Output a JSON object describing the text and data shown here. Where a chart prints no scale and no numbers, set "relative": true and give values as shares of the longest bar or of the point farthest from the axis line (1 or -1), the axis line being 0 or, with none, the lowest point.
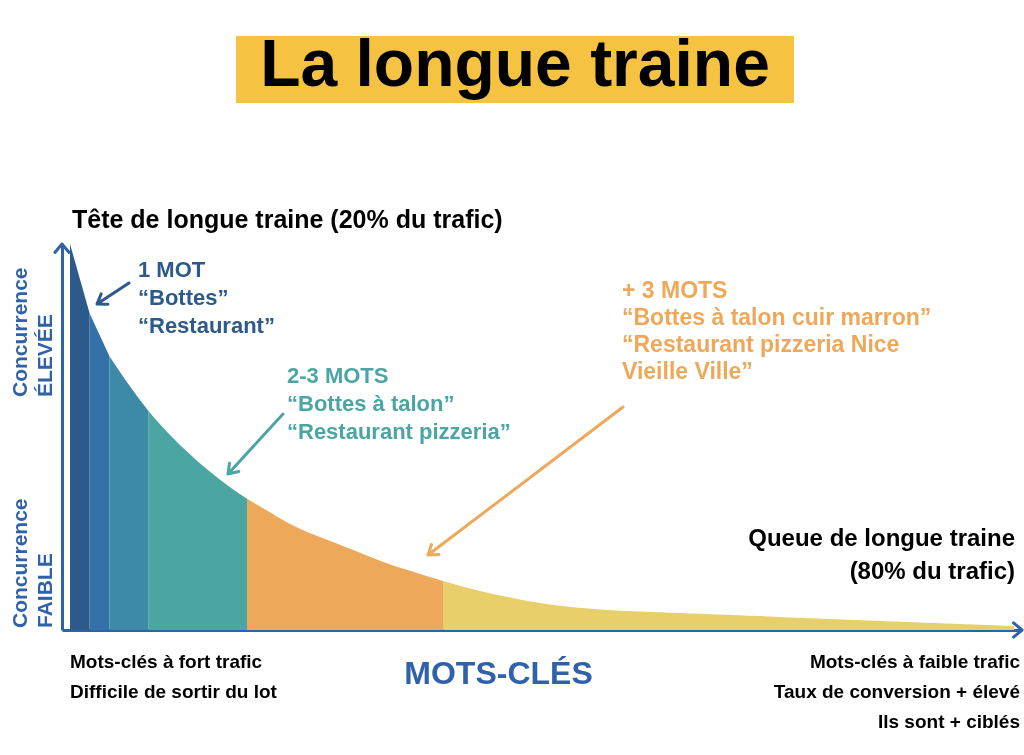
{
  "chart_data": {
    "type": "area",
    "title": "La longue traine",
    "xlabel": "MOTS-CLÉS",
    "relative": true,
    "categories": [
      null,
      null,
      null,
      null,
      null,
      null,
      null,
      null,
      null,
      null,
      null,
      null,
      null,
      null,
      null,
      null,
      null,
      null,
      null,
      null,
      null,
      null,
      null,
      null,
      null,
      null,
      null,
      null,
      null,
      null,
      null,
      null,
      null,
      null,
      null,
      null,
      null,
      null,
      null,
      null,
      null,
      null,
      null,
      null,
      null,
      null,
      null,
      null,
      null
    ],
    "series": [
      {
        "color": "#2c5a8a",
        "values": [
          1,
          0.82,
          null,
          null,
          null,
          null,
          null,
          null,
          null,
          null,
          null,
          null,
          null,
          null,
          null,
          null,
          null,
          null,
          null,
          null,
          null,
          null,
          null,
          null,
          null,
          null,
          null,
          null,
          null,
          null,
          null,
          null,
          null,
          null,
          null,
          null,
          null,
          null,
          null,
          null,
          null,
          null,
          null,
          null,
          null,
          null,
          null,
          null,
          null
        ]
      },
      {
        "color": "#3371a8",
        "values": [
          null,
          0.82,
          0.71,
          null,
          null,
          null,
          null,
          null,
          null,
          null,
          null,
          null,
          null,
          null,
          null,
          null,
          null,
          null,
          null,
          null,
          null,
          null,
          null,
          null,
          null,
          null,
          null,
          null,
          null,
          null,
          null,
          null,
          null,
          null,
          null,
          null,
          null,
          null,
          null,
          null,
          null,
          null,
          null,
          null,
          null,
          null,
          null,
          null,
          null
        ]
      },
      {
        "color": "#3d8aa6",
        "values": [
          null,
          null,
          0.71,
          0.635,
          0.567,
          null,
          null,
          null,
          null,
          null,
          null,
          null,
          null,
          null,
          null,
          null,
          null,
          null,
          null,
          null,
          null,
          null,
          null,
          null,
          null,
          null,
          null,
          null,
          null,
          null,
          null,
          null,
          null,
          null,
          null,
          null,
          null,
          null,
          null,
          null,
          null,
          null,
          null,
          null,
          null,
          null,
          null,
          null,
          null
        ]
      },
      {
        "color": "#4ba5a2",
        "values": [
          null,
          null,
          null,
          null,
          0.567,
          0.51,
          0.46,
          0.415,
          0.375,
          0.34,
          null,
          null,
          null,
          null,
          null,
          null,
          null,
          null,
          null,
          null,
          null,
          null,
          null,
          null,
          null,
          null,
          null,
          null,
          null,
          null,
          null,
          null,
          null,
          null,
          null,
          null,
          null,
          null,
          null,
          null,
          null,
          null,
          null,
          null,
          null,
          null,
          null,
          null,
          null
        ]
      },
      {
        "color": "#eea85a",
        "values": [
          null,
          null,
          null,
          null,
          null,
          null,
          null,
          null,
          null,
          0.34,
          0.31,
          0.28,
          0.255,
          0.235,
          0.215,
          0.195,
          0.175,
          0.158,
          0.142,
          0.126,
          null,
          null,
          null,
          null,
          null,
          null,
          null,
          null,
          null,
          null,
          null,
          null,
          null,
          null,
          null,
          null,
          null,
          null,
          null,
          null,
          null,
          null,
          null,
          null,
          null,
          null,
          null,
          null,
          null
        ]
      },
      {
        "color": "#e8cf6a",
        "values": [
          null,
          null,
          null,
          null,
          null,
          null,
          null,
          null,
          null,
          null,
          null,
          null,
          null,
          null,
          null,
          null,
          null,
          null,
          null,
          0.126,
          0.112,
          0.099,
          0.088,
          0.078,
          0.069,
          0.062,
          0.057,
          0.053,
          0.05,
          0.048,
          0.046,
          0.044,
          0.042,
          0.04,
          0.038,
          0.036,
          0.034,
          0.032,
          0.03,
          0.028,
          0.026,
          0.024,
          0.022,
          0.02,
          0.018,
          0.016,
          0.014,
          0.012,
          0.01
        ]
      }
    ],
    "annotations": [
      "Tête de longue traine (20% du trafic)",
      "Concurrence\nÉLEVÉE",
      "Concurrence\nFAIBLE",
      "1 MOT\n“Bottes”\n“Restaurant”",
      "2-3 MOTS\n“Bottes à talon”\n“Restaurant pizzeria”",
      "+ 3 MOTS\n“Bottes à talon cuir marron”\n“Restaurant pizzeria Nice\nVieille Ville”",
      "Queue de longue traine\n(80% du trafic)",
      "Mots-clés à fort trafic\nDifficile de sortir du lot",
      "Mots-clés à faible trafic\nTaux de conversion + élevé\nIls sont + ciblés"
    ]
  }
}
